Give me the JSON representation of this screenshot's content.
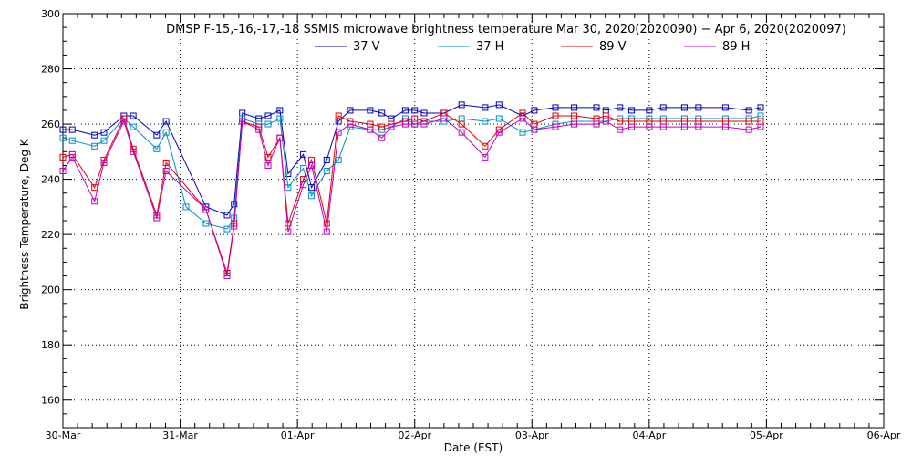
{
  "chart_data": {
    "type": "line",
    "title": "DMSP F-15,-16,-17,-18 SSMIS microwave brightness temperature Mar 30, 2020(2020090) − Apr  6, 2020(2020097)",
    "xlabel": "Date (EST)",
    "ylabel": "Brightness Temperature, Deg K",
    "ylim": [
      150,
      300
    ],
    "yticks": [
      160,
      180,
      200,
      220,
      240,
      260,
      280,
      300
    ],
    "xlim": [
      "30-Mar",
      "06-Apr"
    ],
    "xticks": [
      "30-Mar",
      "31-Mar",
      "01-Apr",
      "02-Apr",
      "03-Apr",
      "04-Apr",
      "05-Apr",
      "06-Apr"
    ],
    "grid": true,
    "legend_position": "top-center",
    "series": [
      {
        "name": "37 V",
        "color": "#0000c0",
        "x": [
          0.0,
          0.08,
          0.27,
          0.35,
          0.52,
          0.6,
          0.8,
          0.88,
          1.22,
          1.4,
          1.46,
          1.53,
          1.67,
          1.75,
          1.85,
          1.92,
          2.05,
          2.12,
          2.25,
          2.35,
          2.45,
          2.62,
          2.72,
          2.8,
          2.92,
          3.0,
          3.08,
          3.25,
          3.4,
          3.6,
          3.72,
          3.92,
          4.02,
          4.2,
          4.36,
          4.55,
          4.63,
          4.75,
          4.85,
          5.0,
          5.12,
          5.3,
          5.42,
          5.65,
          5.85,
          5.95
        ],
        "y": [
          258,
          258,
          256,
          257,
          263,
          263,
          256,
          261,
          230,
          227,
          231,
          264,
          262,
          263,
          265,
          242,
          249,
          237,
          247,
          261,
          265,
          265,
          264,
          262,
          265,
          265,
          264,
          264,
          267,
          266,
          267,
          263,
          265,
          266,
          266,
          266,
          265,
          266,
          265,
          265,
          266,
          266,
          266,
          266,
          265,
          266
        ]
      },
      {
        "name": "37 H",
        "color": "#0090c8",
        "x": [
          0.0,
          0.08,
          0.27,
          0.35,
          0.52,
          0.6,
          0.8,
          0.88,
          1.05,
          1.22,
          1.4,
          1.46,
          1.53,
          1.67,
          1.75,
          1.85,
          1.92,
          2.05,
          2.12,
          2.25,
          2.35,
          2.45,
          2.62,
          2.72,
          2.8,
          2.92,
          3.0,
          3.08,
          3.25,
          3.4,
          3.6,
          3.72,
          3.92,
          4.02,
          4.2,
          4.36,
          4.55,
          4.63,
          4.75,
          4.85,
          5.0,
          5.12,
          5.3,
          5.42,
          5.65,
          5.85,
          5.95
        ],
        "y": [
          255,
          254,
          252,
          254,
          262,
          259,
          251,
          257,
          230,
          224,
          222,
          226,
          262,
          260,
          260,
          262,
          237,
          244,
          234,
          243,
          247,
          259,
          258,
          258,
          259,
          262,
          260,
          261,
          261,
          262,
          261,
          262,
          257,
          258,
          260,
          261,
          261,
          261,
          262,
          262,
          262,
          262,
          262,
          262,
          262,
          262,
          263
        ]
      },
      {
        "name": "89 V",
        "color": "#e00000",
        "x": [
          0.0,
          0.08,
          0.27,
          0.35,
          0.52,
          0.6,
          0.8,
          0.88,
          1.22,
          1.4,
          1.46,
          1.53,
          1.67,
          1.75,
          1.85,
          1.92,
          2.05,
          2.12,
          2.25,
          2.35,
          2.45,
          2.62,
          2.72,
          2.8,
          2.92,
          3.0,
          3.08,
          3.25,
          3.4,
          3.6,
          3.72,
          3.92,
          4.02,
          4.2,
          4.36,
          4.55,
          4.63,
          4.75,
          4.85,
          5.0,
          5.12,
          5.3,
          5.42,
          5.65,
          5.85,
          5.95
        ],
        "y": [
          248,
          249,
          237,
          247,
          262,
          251,
          227,
          246,
          229,
          206,
          224,
          261,
          259,
          248,
          255,
          224,
          240,
          247,
          224,
          263,
          261,
          260,
          259,
          260,
          261,
          262,
          261,
          264,
          260,
          252,
          258,
          264,
          260,
          263,
          263,
          262,
          263,
          261,
          261,
          261,
          261,
          261,
          261,
          261,
          261,
          261
        ]
      },
      {
        "name": "89 H",
        "color": "#c000c0",
        "x": [
          0.0,
          0.08,
          0.27,
          0.35,
          0.52,
          0.6,
          0.8,
          0.88,
          1.22,
          1.4,
          1.46,
          1.53,
          1.67,
          1.75,
          1.85,
          1.92,
          2.05,
          2.12,
          2.25,
          2.35,
          2.45,
          2.62,
          2.72,
          2.8,
          2.92,
          3.0,
          3.08,
          3.25,
          3.4,
          3.6,
          3.72,
          3.92,
          4.02,
          4.2,
          4.36,
          4.55,
          4.63,
          4.75,
          4.85,
          5.0,
          5.12,
          5.3,
          5.42,
          5.65,
          5.85,
          5.95
        ],
        "y": [
          243,
          248,
          232,
          246,
          261,
          250,
          226,
          243,
          229,
          205,
          223,
          261,
          258,
          245,
          255,
          221,
          238,
          245,
          221,
          257,
          260,
          258,
          255,
          259,
          260,
          260,
          260,
          262,
          257,
          248,
          257,
          262,
          258,
          259,
          260,
          260,
          261,
          258,
          259,
          259,
          259,
          259,
          259,
          259,
          258,
          259
        ]
      }
    ]
  }
}
